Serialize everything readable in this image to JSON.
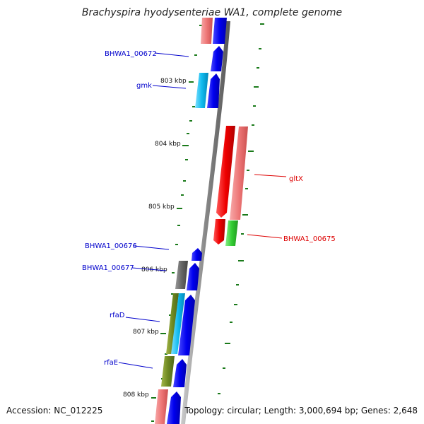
{
  "title": "Brachyspira hyodysenteriae WA1, complete genome",
  "footer": {
    "accession": "Accession: NC_012225",
    "summary": "Topology: circular; Length: 3,000,694 bp; Genes: 2,648"
  },
  "colors": {
    "plus_strand_label": "#0000cc",
    "minus_strand_label": "#dd0000",
    "cds_blue": "#0000ee",
    "cds_red": "#ee0000",
    "backbone": "#888888",
    "gc_ticks": "#228822"
  },
  "ticks": [
    "803 kbp",
    "804 kbp",
    "805 kbp",
    "806 kbp",
    "807 kbp",
    "808 kbp"
  ],
  "gene_labels": {
    "BHWA1_00672": "BHWA1_00672",
    "gmk": "gmk",
    "gltX": "gltX",
    "BHWA1_00675": "BHWA1_00675",
    "BHWA1_00676": "BHWA1_00676",
    "BHWA1_00677": "BHWA1_00677",
    "rfaD": "rfaD",
    "rfaE": "rfaE"
  }
}
